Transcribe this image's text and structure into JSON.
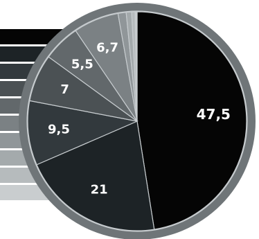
{
  "chart_data": {
    "type": "pie",
    "title": "",
    "legend": "left",
    "series": [
      {
        "values": [
          47.5,
          21,
          9.5,
          7,
          5.5,
          6.7,
          1.2,
          0.8,
          0.5,
          0.3
        ],
        "labels": [
          "47,5",
          "21",
          "9,5",
          "7",
          "5,5",
          "6,7",
          "",
          "",
          "",
          ""
        ],
        "colors": [
          "#050505",
          "#1d2326",
          "#32393d",
          "#4b5154",
          "#62686b",
          "#7b8184",
          "#909699",
          "#a4aaac",
          "#b6bbbd",
          "#c9cdcf"
        ]
      }
    ],
    "grid": false
  },
  "theme": {
    "ring_color": "#6f7578",
    "slice_stroke": "#c7cccf",
    "legend_bar_color": "#111111"
  }
}
